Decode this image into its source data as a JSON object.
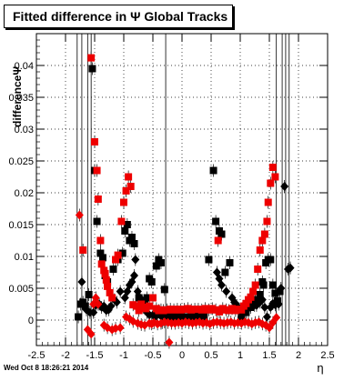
{
  "header": {
    "title": "Fitted difference in  Ψ   Global Tracks",
    "timestamp": "Wed Oct  8 18:26:21 2014"
  },
  "chart_data": {
    "type": "scatter",
    "title": "Fitted difference in  Ψ   Global Tracks",
    "xlabel": "η",
    "ylabel": "differenceΨ",
    "xlim": [
      -2.5,
      2.5
    ],
    "ylim": [
      -0.004,
      0.045
    ],
    "xticks": [
      "-2.5",
      "-2",
      "-1.5",
      "-1",
      "-0.5",
      "0",
      "0.5",
      "1",
      "1.5",
      "2",
      "2.5"
    ],
    "yticks": [
      "0",
      "0.005",
      "0.01",
      "0.015",
      "0.02",
      "0.025",
      "0.03",
      "0.035",
      "0.04"
    ],
    "grid": true,
    "colors": {
      "black": "#000000",
      "red": "#ee0000"
    },
    "series": [
      {
        "marker": "square",
        "color": "#000000",
        "points": [
          [
            -1.78,
            0.0005
          ],
          [
            -1.74,
            0.0025
          ],
          [
            -1.7,
            0.0028
          ],
          [
            -1.66,
            0.0022
          ],
          [
            -1.6,
            0.004
          ],
          [
            -1.54,
            0.0395
          ],
          [
            -1.5,
            0.0235
          ],
          [
            -1.46,
            0.0155
          ],
          [
            -1.4,
            0.0105
          ],
          [
            -1.36,
            0.0098
          ],
          [
            -1.32,
            0.007
          ],
          [
            -1.28,
            0.006
          ],
          [
            -1.18,
            0.008
          ],
          [
            -1.1,
            0.0095
          ],
          [
            -1.02,
            0.0105
          ],
          [
            -0.98,
            0.014
          ],
          [
            -0.94,
            0.015
          ],
          [
            -0.9,
            0.0125
          ],
          [
            -0.86,
            0.013
          ],
          [
            -0.82,
            0.012
          ],
          [
            -0.74,
            0.0035
          ],
          [
            -0.7,
            0.0028
          ],
          [
            -0.64,
            0.003
          ],
          [
            -0.6,
            0.0035
          ],
          [
            -0.56,
            0.0065
          ],
          [
            -0.52,
            0.006
          ],
          [
            -0.44,
            0.0085
          ],
          [
            -0.4,
            0.0095
          ],
          [
            -0.36,
            0.009
          ],
          [
            -0.3,
            0.0048
          ],
          [
            -0.26,
            0.0005
          ],
          [
            -0.2,
            0.0004
          ],
          [
            -0.14,
            0.0008
          ],
          [
            -0.08,
            0.0005
          ],
          [
            -0.02,
            0.0006
          ],
          [
            0.04,
            0.0005
          ],
          [
            0.1,
            0.0004
          ],
          [
            0.16,
            0.0005
          ],
          [
            0.22,
            0.0004
          ],
          [
            0.28,
            0.0006
          ],
          [
            0.34,
            0.0005
          ],
          [
            0.38,
            0.0005
          ],
          [
            0.46,
            0.0095
          ],
          [
            0.54,
            0.0235
          ],
          [
            0.58,
            0.0155
          ],
          [
            0.64,
            0.014
          ],
          [
            0.68,
            0.0135
          ],
          [
            0.74,
            0.0075
          ],
          [
            0.82,
            0.009
          ],
          [
            1.02,
            0.0005
          ],
          [
            1.1,
            0.0012
          ],
          [
            1.18,
            0.002
          ],
          [
            1.26,
            0.0032
          ],
          [
            1.3,
            0.003
          ],
          [
            1.34,
            0.004
          ],
          [
            1.38,
            0.006
          ],
          [
            1.4,
            0.0055
          ],
          [
            1.44,
            0.009
          ],
          [
            1.48,
            0.0095
          ],
          [
            1.52,
            0.0095
          ],
          [
            1.56,
            0.0055
          ],
          [
            1.6,
            0.0042
          ],
          [
            1.64,
            0.003
          ],
          [
            1.68,
            0.0045
          ]
        ]
      },
      {
        "marker": "diamond",
        "color": "#000000",
        "points": [
          [
            -1.72,
            0.006
          ],
          [
            -1.64,
            0.0016
          ],
          [
            -1.58,
            0.0012
          ],
          [
            -1.52,
            0.0012
          ],
          [
            -1.48,
            0.0023
          ],
          [
            -1.42,
            0.0025
          ],
          [
            -1.38,
            0.002
          ],
          [
            -1.34,
            0.0022
          ],
          [
            -1.3,
            0.0015
          ],
          [
            -1.26,
            0.0016
          ],
          [
            -1.22,
            0.0022
          ],
          [
            -1.16,
            0.0032
          ],
          [
            -1.12,
            0.0028
          ],
          [
            -1.06,
            0.0045
          ],
          [
            -0.98,
            0.0035
          ],
          [
            -0.94,
            0.0045
          ],
          [
            -0.9,
            0.0055
          ],
          [
            -0.86,
            0.006
          ],
          [
            -0.82,
            0.007
          ],
          [
            -0.8,
            0.0095
          ],
          [
            -0.76,
            0.0045
          ],
          [
            -0.72,
            0.0035
          ],
          [
            -0.68,
            0.0025
          ],
          [
            -0.64,
            0.0018
          ],
          [
            -0.6,
            0.0012
          ],
          [
            -0.56,
            0.0008
          ],
          [
            -0.5,
            0.0008
          ],
          [
            -0.46,
            0.0005
          ],
          [
            -0.4,
            0.0013
          ],
          [
            -0.36,
            0.0006
          ],
          [
            -0.34,
            -0.0004
          ],
          [
            0.6,
            0.0075
          ],
          [
            0.64,
            0.0065
          ],
          [
            0.68,
            0.0055
          ],
          [
            0.76,
            0.0045
          ],
          [
            0.86,
            0.0035
          ],
          [
            0.9,
            0.0028
          ],
          [
            0.94,
            0.0023
          ],
          [
            0.98,
            0.0018
          ],
          [
            1.04,
            0.0018
          ],
          [
            1.1,
            0.0016
          ],
          [
            1.14,
            0.0018
          ],
          [
            1.18,
            0.0023
          ],
          [
            1.24,
            0.0023
          ],
          [
            1.28,
            0.0023
          ],
          [
            1.34,
            0.0028
          ],
          [
            1.38,
            0.0032
          ],
          [
            1.42,
            0.002
          ],
          [
            1.46,
            0.0005
          ],
          [
            1.52,
            0.002
          ],
          [
            1.56,
            0.0026
          ],
          [
            1.6,
            0.0024
          ],
          [
            1.66,
            0.0025
          ],
          [
            1.7,
            0.005
          ],
          [
            1.76,
            0.021
          ],
          [
            1.82,
            0.008
          ],
          [
            1.86,
            0.0082
          ]
        ]
      },
      {
        "marker": "square",
        "color": "#ee0000",
        "points": [
          [
            -1.7,
            0.011
          ],
          [
            -1.56,
            0.0412
          ],
          [
            -1.5,
            0.028
          ],
          [
            -1.46,
            0.0235
          ],
          [
            -1.44,
            0.019
          ],
          [
            -1.4,
            0.0125
          ],
          [
            -1.38,
            0.0088
          ],
          [
            -1.34,
            0.0078
          ],
          [
            -1.32,
            0.0073
          ],
          [
            -1.3,
            0.0063
          ],
          [
            -1.28,
            0.0053
          ],
          [
            -1.24,
            0.0043
          ],
          [
            -1.2,
            0.0035
          ],
          [
            -1.14,
            0.0095
          ],
          [
            -1.1,
            0.0102
          ],
          [
            -1.04,
            0.0155
          ],
          [
            -1.0,
            0.0185
          ],
          [
            -0.96,
            0.0203
          ],
          [
            -0.92,
            0.0225
          ],
          [
            -0.88,
            0.021
          ],
          [
            -0.84,
            0.0024
          ],
          [
            -0.78,
            0.0022
          ],
          [
            -0.74,
            0.0015
          ],
          [
            -0.7,
            0.0025
          ],
          [
            -0.66,
            0.002
          ],
          [
            -0.62,
            0.0018
          ],
          [
            -0.56,
            0.0022
          ],
          [
            -0.5,
            0.0035
          ],
          [
            -0.44,
            0.0018
          ],
          [
            -0.4,
            0.0015
          ],
          [
            -0.36,
            0.0016
          ],
          [
            -0.32,
            0.0015
          ],
          [
            -0.26,
            0.0016
          ],
          [
            -0.2,
            0.0017
          ],
          [
            -0.14,
            0.0016
          ],
          [
            -0.08,
            0.0017
          ],
          [
            -0.02,
            0.0016
          ],
          [
            0.04,
            0.0017
          ],
          [
            0.1,
            0.0018
          ],
          [
            0.16,
            0.0016
          ],
          [
            0.22,
            0.0017
          ],
          [
            0.28,
            0.0017
          ],
          [
            0.34,
            0.0016
          ],
          [
            0.4,
            0.0018
          ],
          [
            0.46,
            0.0016
          ],
          [
            0.52,
            0.0018
          ],
          [
            0.58,
            0.0016
          ],
          [
            0.64,
            0.0013
          ],
          [
            0.7,
            0.0018
          ],
          [
            0.76,
            0.0016
          ],
          [
            0.8,
            0.0015
          ],
          [
            0.86,
            0.0018
          ],
          [
            0.92,
            0.0015
          ],
          [
            0.98,
            0.0017
          ],
          [
            1.02,
            0.0016
          ],
          [
            1.06,
            0.0022
          ],
          [
            1.1,
            0.0026
          ],
          [
            1.14,
            0.0032
          ],
          [
            1.18,
            0.0036
          ],
          [
            1.22,
            0.0045
          ],
          [
            1.26,
            0.0055
          ],
          [
            1.3,
            0.008
          ],
          [
            1.34,
            0.011
          ],
          [
            1.38,
            0.0125
          ],
          [
            1.42,
            0.0135
          ],
          [
            1.46,
            0.0155
          ],
          [
            1.48,
            0.0185
          ],
          [
            1.52,
            0.0215
          ],
          [
            1.56,
            0.024
          ],
          [
            1.6,
            0.0225
          ],
          [
            0.62,
            0.0125
          ]
        ]
      },
      {
        "marker": "diamond",
        "color": "#ee0000",
        "points": [
          [
            -1.76,
            0.0165
          ],
          [
            -1.62,
            -0.0015
          ],
          [
            -1.56,
            -0.0022
          ],
          [
            -1.52,
            0.0025
          ],
          [
            -1.48,
            0.0035
          ],
          [
            -1.44,
            0.0025
          ],
          [
            -1.34,
            -0.0008
          ],
          [
            -1.28,
            -0.0012
          ],
          [
            -1.2,
            -0.0015
          ],
          [
            -1.14,
            -0.0013
          ],
          [
            -1.06,
            -0.0012
          ],
          [
            -0.96,
            0.0005
          ],
          [
            -0.9,
            0.0002
          ],
          [
            -0.84,
            -0.0002
          ],
          [
            -0.76,
            -0.0005
          ],
          [
            -0.7,
            -0.0007
          ],
          [
            -0.64,
            -0.0008
          ],
          [
            -0.56,
            -0.0005
          ],
          [
            -0.52,
            -0.0006
          ],
          [
            -0.48,
            -0.0004
          ],
          [
            -0.42,
            -0.0006
          ],
          [
            -0.36,
            -0.0005
          ],
          [
            -0.3,
            -0.0003
          ],
          [
            -0.24,
            -0.0004
          ],
          [
            -0.18,
            -0.0005
          ],
          [
            -0.12,
            -0.0005
          ],
          [
            -0.06,
            -0.0004
          ],
          [
            0.0,
            -0.0005
          ],
          [
            0.06,
            -0.0003
          ],
          [
            0.12,
            -0.0004
          ],
          [
            0.18,
            -0.0005
          ],
          [
            0.24,
            -0.0004
          ],
          [
            0.3,
            -0.0003
          ],
          [
            0.36,
            -0.0005
          ],
          [
            0.42,
            -0.0004
          ],
          [
            0.48,
            -0.0006
          ],
          [
            0.54,
            -0.0004
          ],
          [
            0.6,
            -0.0003
          ],
          [
            0.66,
            -0.0004
          ],
          [
            0.72,
            -0.0005
          ],
          [
            0.78,
            -0.0004
          ],
          [
            0.84,
            -0.0003
          ],
          [
            0.9,
            -0.0005
          ],
          [
            0.96,
            -0.0004
          ],
          [
            1.02,
            -0.0005
          ],
          [
            1.08,
            -0.0003
          ],
          [
            1.14,
            -0.0004
          ],
          [
            1.2,
            -0.0006
          ],
          [
            1.26,
            -0.0004
          ],
          [
            1.32,
            -0.0003
          ],
          [
            1.38,
            -0.0006
          ],
          [
            1.44,
            -0.0008
          ],
          [
            1.5,
            -0.0012
          ],
          [
            1.56,
            -0.0004
          ],
          [
            1.62,
            0.0004
          ],
          [
            -0.22,
            -0.0035
          ]
        ]
      }
    ],
    "vertical_lines_x": [
      -1.8,
      -1.72,
      -1.62,
      -1.56,
      -0.28,
      1.62,
      1.72,
      1.78,
      1.84
    ]
  }
}
